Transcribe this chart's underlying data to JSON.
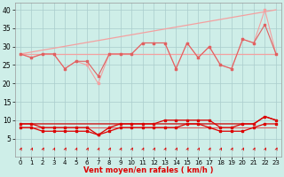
{
  "x": [
    0,
    1,
    2,
    3,
    4,
    5,
    6,
    7,
    8,
    9,
    10,
    11,
    12,
    13,
    14,
    15,
    16,
    17,
    18,
    19,
    20,
    21,
    22,
    23
  ],
  "trend_line": [
    [
      0,
      28
    ],
    [
      23,
      40
    ]
  ],
  "flat_line_y": 28,
  "rafales": [
    28,
    27,
    28,
    28,
    24,
    26,
    25,
    20,
    28,
    28,
    28,
    31,
    31,
    31,
    24,
    31,
    27,
    30,
    25,
    24,
    32,
    31,
    40,
    28
  ],
  "moyen_upper": [
    28,
    27,
    28,
    28,
    24,
    26,
    26,
    22,
    28,
    28,
    28,
    31,
    31,
    31,
    24,
    31,
    27,
    30,
    25,
    24,
    32,
    31,
    36,
    28
  ],
  "line_flat28": [
    28,
    28,
    28,
    28,
    28,
    28,
    28,
    28,
    28,
    28,
    28,
    28,
    28,
    28,
    28,
    28,
    28,
    28,
    28,
    28,
    28,
    28,
    28,
    28
  ],
  "bottom_rafales": [
    9,
    9,
    8,
    8,
    8,
    8,
    8,
    6,
    8,
    9,
    9,
    9,
    9,
    10,
    10,
    10,
    10,
    10,
    8,
    8,
    9,
    9,
    11,
    10
  ],
  "bottom_moyen": [
    8,
    8,
    7,
    7,
    7,
    7,
    7,
    6,
    7,
    8,
    8,
    8,
    8,
    8,
    8,
    9,
    9,
    8,
    7,
    7,
    7,
    8,
    9,
    9
  ],
  "bottom_flat": [
    8,
    8,
    8,
    8,
    8,
    8,
    8,
    8,
    8,
    8,
    8,
    8,
    8,
    8,
    8,
    8,
    8,
    8,
    8,
    8,
    8,
    8,
    8,
    8
  ],
  "bottom_line2": [
    9,
    9,
    9,
    9,
    9,
    9,
    9,
    9,
    9,
    9,
    9,
    9,
    9,
    9,
    9,
    9,
    9,
    9,
    9,
    9,
    9,
    9,
    11,
    10
  ],
  "color_light": "#f4a0a0",
  "color_medium": "#e06060",
  "color_dark": "#dd0000",
  "color_darkest": "#cc0000",
  "bg_color": "#ceeee8",
  "grid_color": "#aacccc",
  "xlabel": "Vent moyen/en rafales ( km/h )",
  "ylim": [
    0,
    42
  ],
  "xlim": [
    -0.5,
    23.5
  ],
  "yticks": [
    5,
    10,
    15,
    20,
    25,
    30,
    35,
    40
  ],
  "xticks": [
    0,
    1,
    2,
    3,
    4,
    5,
    6,
    7,
    8,
    9,
    10,
    11,
    12,
    13,
    14,
    15,
    16,
    17,
    18,
    19,
    20,
    21,
    22,
    23
  ]
}
